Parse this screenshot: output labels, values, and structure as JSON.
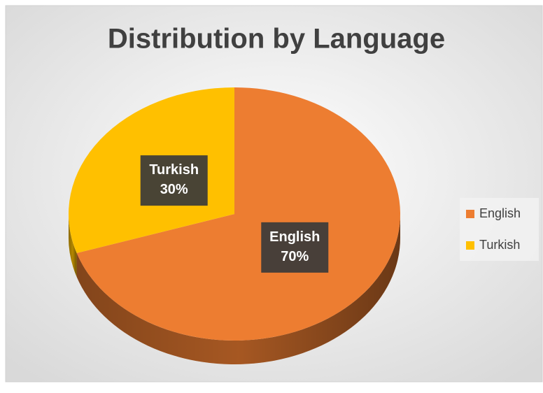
{
  "chart_data": {
    "type": "pie",
    "title": "Distribution by Language",
    "categories": [
      "English",
      "Turkish"
    ],
    "values": [
      70,
      30
    ],
    "value_labels": [
      "70%",
      "30%"
    ],
    "colors": [
      "#ED7D31",
      "#FFC000"
    ],
    "legend": "right"
  }
}
